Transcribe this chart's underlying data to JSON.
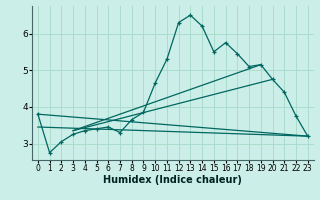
{
  "xlabel": "Humidex (Indice chaleur)",
  "bg_color": "#cceee8",
  "line_color": "#006660",
  "grid_color": "#aaddcc",
  "xlim": [
    -0.5,
    23.5
  ],
  "ylim": [
    2.55,
    6.75
  ],
  "yticks": [
    3,
    4,
    5,
    6
  ],
  "xticks": [
    0,
    1,
    2,
    3,
    4,
    5,
    6,
    7,
    8,
    9,
    10,
    11,
    12,
    13,
    14,
    15,
    16,
    17,
    18,
    19,
    20,
    21,
    22,
    23
  ],
  "series1_x": [
    0,
    1,
    2,
    3,
    4,
    5,
    6,
    7,
    8,
    9,
    10,
    11,
    12,
    13,
    14,
    15,
    16,
    17,
    18,
    19,
    20,
    21,
    22,
    23
  ],
  "series1_y": [
    3.8,
    2.75,
    3.05,
    3.25,
    3.35,
    3.4,
    3.45,
    3.3,
    3.65,
    3.85,
    4.65,
    5.3,
    6.3,
    6.5,
    6.2,
    5.5,
    5.75,
    5.45,
    5.1,
    5.15,
    4.75,
    4.4,
    3.75,
    3.2
  ],
  "line2_x": [
    0,
    23
  ],
  "line2_y": [
    3.45,
    3.2
  ],
  "line3_x": [
    3,
    20
  ],
  "line3_y": [
    3.35,
    4.75
  ],
  "line4_x": [
    3,
    19
  ],
  "line4_y": [
    3.35,
    5.15
  ],
  "line5_x": [
    0,
    23
  ],
  "line5_y": [
    3.8,
    3.2
  ]
}
